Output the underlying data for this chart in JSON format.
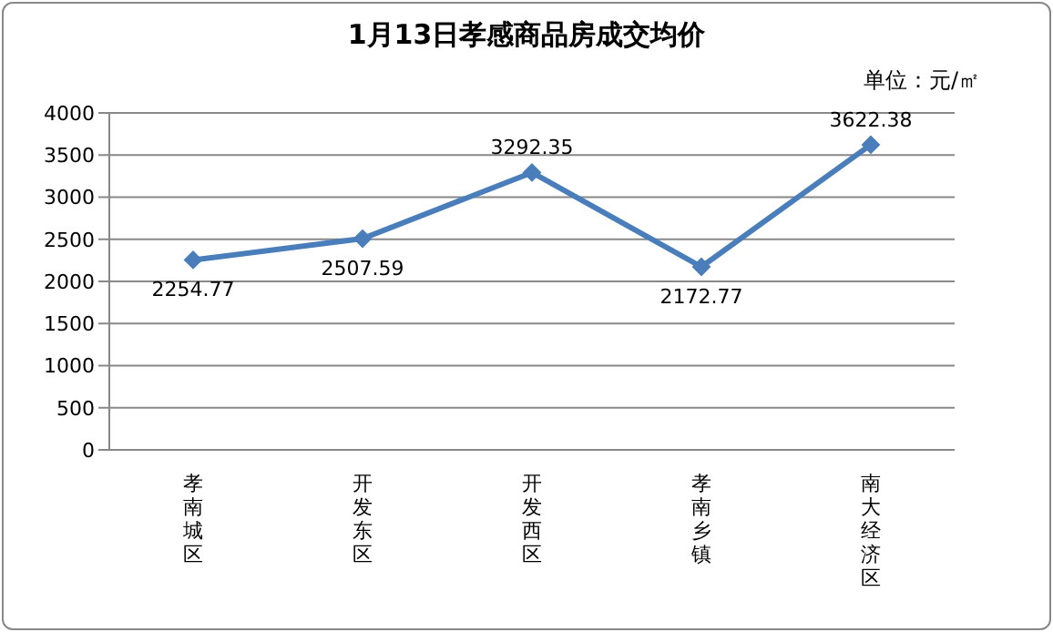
{
  "chart_data": {
    "type": "line",
    "title": "1月13日孝感商品房成交均价",
    "annotations": [
      "单位：元/㎡"
    ],
    "categories": [
      "孝南城区",
      "开发东区",
      "开发西区",
      "孝南乡镇",
      "南大经济区"
    ],
    "series": [
      {
        "color": "#4a7ebb",
        "values": [
          2254.77,
          2507.59,
          3292.35,
          2172.77,
          3622.38
        ]
      }
    ],
    "ylim": [
      0,
      4000
    ],
    "yticks": [
      0,
      500,
      1000,
      1500,
      2000,
      2500,
      3000,
      3500,
      4000
    ],
    "grid": "y",
    "marker": "diamond",
    "line_style": "solid",
    "data_labels": true,
    "legend": false
  }
}
